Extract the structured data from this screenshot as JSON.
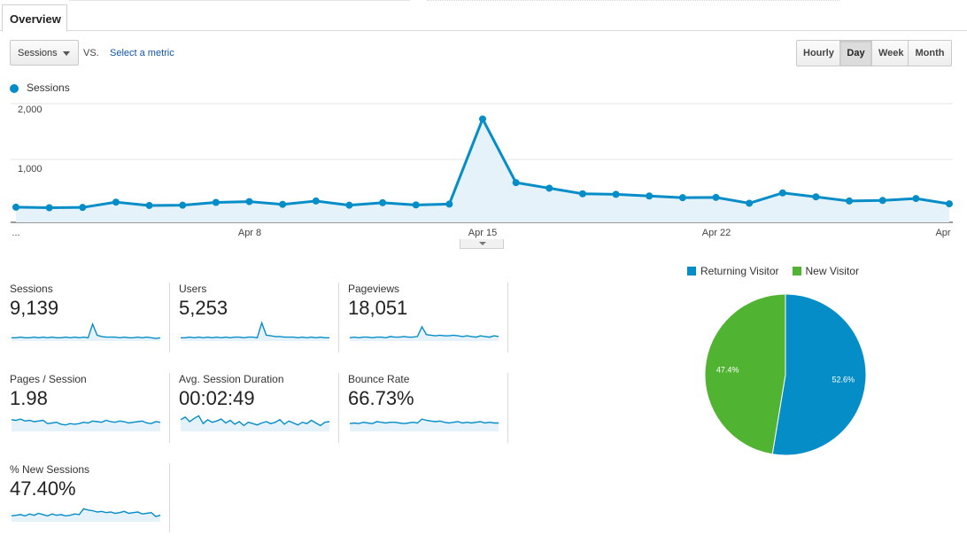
{
  "tabs": {
    "overview": "Overview"
  },
  "controls": {
    "metric": "Sessions",
    "vs": "VS.",
    "select_metric": "Select a metric",
    "periods": [
      "Hourly",
      "Day",
      "Week",
      "Month"
    ],
    "active_period": "Day"
  },
  "legend": {
    "series": "Sessions",
    "color": "#058dc7"
  },
  "chart_data": [
    {
      "type": "area",
      "series": [
        {
          "name": "Sessions",
          "values": [
            145,
            135,
            140,
            235,
            175,
            180,
            230,
            245,
            195,
            255,
            180,
            225,
            185,
            200,
            1725,
            585,
            485,
            385,
            375,
            345,
            315,
            320,
            215,
            400,
            330,
            255,
            265,
            300,
            205
          ]
        }
      ],
      "x_ticks": [
        "...",
        "Apr 8",
        "Apr 15",
        "Apr 22",
        "Apr"
      ],
      "y_ticks": [
        "2,000",
        "1,000"
      ],
      "ylim": [
        0,
        2000
      ],
      "grid": true,
      "color": "#058dc7"
    },
    {
      "type": "pie",
      "legend": [
        "Returning Visitor",
        "New Visitor"
      ],
      "values": [
        52.6,
        47.4
      ],
      "labels": [
        "52.6%",
        "47.4%"
      ],
      "colors": [
        "#058dc7",
        "#50b432"
      ],
      "legend_position": "top"
    }
  ],
  "stats": [
    {
      "label": "Sessions",
      "value": "9,139",
      "trend": [
        5,
        5,
        6,
        5,
        5,
        6,
        5,
        6,
        5,
        6,
        5,
        5,
        6,
        5,
        6,
        5,
        6,
        5,
        26,
        9,
        7,
        6,
        6,
        6,
        5,
        6,
        5,
        5,
        6,
        5,
        6,
        5,
        4,
        5
      ]
    },
    {
      "label": "Users",
      "value": "5,253",
      "trend": [
        5,
        5,
        6,
        5,
        6,
        5,
        6,
        5,
        6,
        5,
        6,
        5,
        6,
        6,
        5,
        6,
        6,
        5,
        28,
        9,
        8,
        7,
        7,
        6,
        6,
        6,
        5,
        6,
        5,
        6,
        5,
        6,
        5,
        5
      ]
    },
    {
      "label": "Pageviews",
      "value": "18,051",
      "trend": [
        5,
        6,
        5,
        6,
        6,
        5,
        6,
        6,
        5,
        7,
        6,
        6,
        7,
        6,
        6,
        7,
        22,
        10,
        9,
        8,
        9,
        8,
        8,
        9,
        8,
        7,
        8,
        7,
        6,
        8,
        7,
        6,
        8,
        7
      ]
    },
    {
      "label": "Pages / Session",
      "value": "1.98",
      "trend": [
        18,
        17,
        19,
        16,
        17,
        15,
        16,
        17,
        12,
        13,
        14,
        11,
        10,
        12,
        11,
        12,
        14,
        13,
        16,
        15,
        14,
        17,
        15,
        14,
        16,
        15,
        13,
        14,
        15,
        16,
        13,
        12,
        15,
        14
      ]
    },
    {
      "label": "Avg. Session Duration",
      "value": "00:02:49",
      "trend": [
        18,
        22,
        15,
        20,
        24,
        12,
        18,
        14,
        16,
        19,
        13,
        17,
        11,
        15,
        9,
        14,
        12,
        10,
        13,
        15,
        12,
        14,
        18,
        11,
        16,
        13,
        10,
        14,
        12,
        17,
        13,
        9,
        14,
        15
      ]
    },
    {
      "label": "Bounce Rate",
      "value": "66.73%",
      "trend": [
        12,
        13,
        12,
        14,
        13,
        12,
        15,
        14,
        13,
        14,
        14,
        13,
        12,
        13,
        14,
        13,
        19,
        17,
        16,
        15,
        16,
        14,
        13,
        14,
        15,
        13,
        14,
        13,
        14,
        15,
        13,
        14,
        13,
        13
      ]
    },
    {
      "label": "% New Sessions",
      "value": "47.40%",
      "trend": [
        9,
        10,
        11,
        9,
        12,
        10,
        13,
        11,
        9,
        12,
        10,
        11,
        9,
        10,
        12,
        11,
        20,
        18,
        17,
        15,
        16,
        14,
        15,
        13,
        14,
        16,
        13,
        14,
        15,
        12,
        13,
        14,
        8,
        10
      ]
    }
  ]
}
